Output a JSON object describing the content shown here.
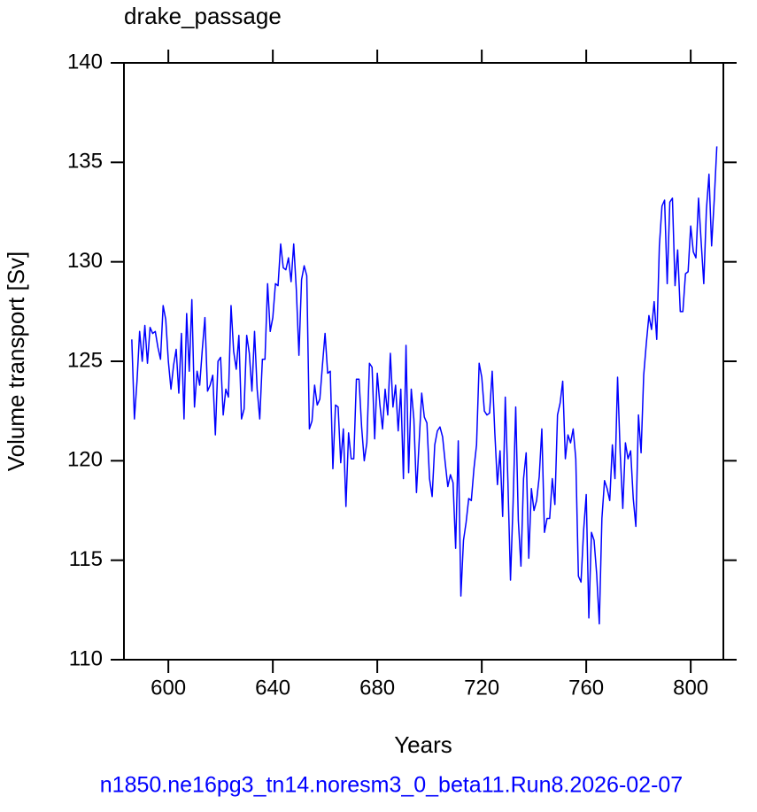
{
  "chart_data": {
    "type": "line",
    "title": "drake_passage",
    "xlabel": "Years",
    "ylabel": "Volume transport [Sv]",
    "footer": "n1850.ne16pg3_tn14.noresm3_0_beta11.Run8.2026-02-07",
    "color": "#0000ff",
    "xlim": [
      583,
      812.5
    ],
    "ylim": [
      110,
      140
    ],
    "xticks": [
      600,
      640,
      680,
      720,
      760,
      800
    ],
    "yticks": [
      110,
      115,
      120,
      125,
      130,
      135,
      140
    ],
    "x": [
      586,
      587,
      588,
      589,
      590,
      591,
      592,
      593,
      594,
      595,
      596,
      597,
      598,
      599,
      600,
      601,
      602,
      603,
      604,
      605,
      606,
      607,
      608,
      609,
      610,
      611,
      612,
      613,
      614,
      615,
      616,
      617,
      618,
      619,
      620,
      621,
      622,
      623,
      624,
      625,
      626,
      627,
      628,
      629,
      630,
      631,
      632,
      633,
      634,
      635,
      636,
      637,
      638,
      639,
      640,
      641,
      642,
      643,
      644,
      645,
      646,
      647,
      648,
      649,
      650,
      651,
      652,
      653,
      654,
      655,
      656,
      657,
      658,
      659,
      660,
      661,
      662,
      663,
      664,
      665,
      666,
      667,
      668,
      669,
      670,
      671,
      672,
      673,
      674,
      675,
      676,
      677,
      678,
      679,
      680,
      681,
      682,
      683,
      684,
      685,
      686,
      687,
      688,
      689,
      690,
      691,
      692,
      693,
      694,
      695,
      696,
      697,
      698,
      699,
      700,
      701,
      702,
      703,
      704,
      705,
      706,
      707,
      708,
      709,
      710,
      711,
      712,
      713,
      714,
      715,
      716,
      717,
      718,
      719,
      720,
      721,
      722,
      723,
      724,
      725,
      726,
      727,
      728,
      729,
      730,
      731,
      732,
      733,
      734,
      735,
      736,
      737,
      738,
      739,
      740,
      741,
      742,
      743,
      744,
      745,
      746,
      747,
      748,
      749,
      750,
      751,
      752,
      753,
      754,
      755,
      756,
      757,
      758,
      759,
      760,
      761,
      762,
      763,
      764,
      765,
      766,
      767,
      768,
      769,
      770,
      771,
      772,
      773,
      774,
      775,
      776,
      777,
      778,
      779,
      780,
      781,
      782,
      783,
      784,
      785,
      786,
      787,
      788,
      789,
      790,
      791,
      792,
      793,
      794,
      795,
      796,
      797,
      798,
      799,
      800,
      801,
      802,
      803,
      804,
      805,
      806,
      807,
      808,
      809,
      810
    ],
    "values": [
      126.1,
      122.1,
      124,
      126.5,
      125,
      126.8,
      124.9,
      126.7,
      126.4,
      126.5,
      125.7,
      125.1,
      127.8,
      127.1,
      125,
      123.6,
      124.8,
      125.6,
      123.4,
      126.4,
      122.1,
      127.4,
      124.5,
      128.1,
      122.7,
      124.5,
      123.8,
      125.6,
      127.2,
      123.5,
      123.8,
      124.3,
      121.3,
      125,
      125.2,
      122.3,
      123.6,
      123.2,
      127.8,
      125.5,
      124.6,
      126.3,
      122.1,
      122.6,
      126.3,
      125.4,
      123.5,
      126.5,
      123.6,
      122.1,
      125.1,
      125.1,
      128.9,
      126.5,
      127.2,
      128.9,
      128.8,
      130.9,
      129.7,
      129.6,
      130.2,
      129,
      130.9,
      128.6,
      125.3,
      129.1,
      129.8,
      129.3,
      121.6,
      122,
      123.8,
      122.8,
      123.1,
      124.8,
      126.4,
      124.4,
      124.5,
      119.6,
      122.8,
      122.7,
      119.9,
      121.6,
      117.7,
      121.4,
      120.1,
      120.1,
      124.1,
      124.1,
      121.7,
      120,
      120.9,
      124.9,
      124.7,
      121.1,
      124.4,
      122.8,
      121.6,
      123.6,
      122.3,
      125.4,
      122.7,
      123.8,
      121.5,
      123.6,
      119.1,
      125.8,
      119.4,
      123.6,
      122.1,
      118.4,
      120.9,
      123.4,
      122.2,
      121.9,
      119.1,
      118.2,
      120.8,
      121.5,
      121.7,
      121.2,
      119.9,
      118.7,
      119.3,
      118.9,
      115.6,
      121,
      113.2,
      116,
      116.9,
      118.1,
      118,
      119.6,
      120.8,
      124.9,
      124.2,
      122.5,
      122.3,
      122.4,
      124.5,
      121.4,
      118.8,
      120.5,
      117.2,
      123.2,
      119,
      114,
      117.9,
      122.7,
      117,
      114.7,
      119.1,
      120.4,
      115.1,
      118.6,
      117.5,
      118,
      119.2,
      121.6,
      116.4,
      117.1,
      117.1,
      119.1,
      117.8,
      122.3,
      122.9,
      124,
      120.1,
      121.3,
      120.9,
      121.6,
      120.1,
      114.2,
      113.9,
      116.5,
      118.3,
      112.1,
      116.4,
      116,
      114.3,
      111.8,
      117.1,
      119,
      118.6,
      118,
      120.8,
      119.1,
      124.2,
      120.4,
      117.6,
      120.9,
      120.1,
      120.5,
      118.1,
      116.7,
      122.3,
      120.4,
      124.3,
      125.9,
      127.3,
      126.6,
      128,
      126.1,
      130.8,
      132.8,
      133.1,
      128.9,
      133,
      133.2,
      128.8,
      130.6,
      127.5,
      127.5,
      129.4,
      129.5,
      131.8,
      130.5,
      130.2,
      133.2,
      131,
      128.9,
      132.6,
      134.4,
      130.8,
      133.1,
      135.8
    ]
  }
}
